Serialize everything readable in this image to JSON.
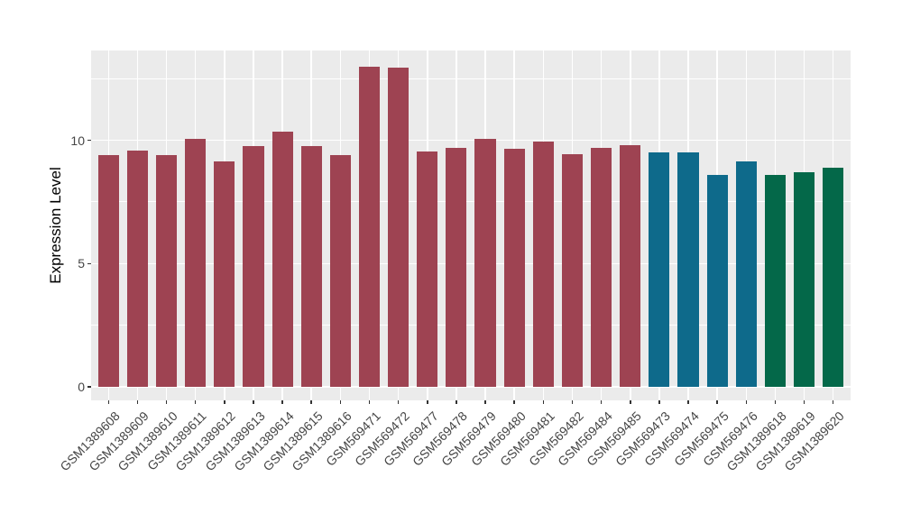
{
  "chart_data": {
    "type": "bar",
    "title": "",
    "xlabel": "",
    "ylabel": "Expression Level",
    "y_ticks": [
      0,
      5,
      10
    ],
    "y_minor_ticks": [
      2.5,
      7.5,
      12.5
    ],
    "ylim": [
      0,
      13.65
    ],
    "grid": true,
    "legend_position": "none",
    "panel_background": "#EBEBEB",
    "grid_color": "#FFFFFF",
    "axis_text_color": "#454545",
    "categories": [
      "GSM1389608",
      "GSM1389609",
      "GSM1389610",
      "GSM1389611",
      "GSM1389612",
      "GSM1389613",
      "GSM1389614",
      "GSM1389615",
      "GSM1389616",
      "GSM569471",
      "GSM569472",
      "GSM569477",
      "GSM569478",
      "GSM569479",
      "GSM569480",
      "GSM569481",
      "GSM569482",
      "GSM569484",
      "GSM569485",
      "GSM569473",
      "GSM569474",
      "GSM569475",
      "GSM569476",
      "GSM1389618",
      "GSM1389619",
      "GSM1389620"
    ],
    "values": [
      9.4,
      9.6,
      9.4,
      10.05,
      9.15,
      9.75,
      10.35,
      9.75,
      9.4,
      13.0,
      12.95,
      9.55,
      9.7,
      10.05,
      9.65,
      9.95,
      9.45,
      9.7,
      9.8,
      9.5,
      9.5,
      8.6,
      9.15,
      8.6,
      8.7,
      8.9
    ],
    "bar_colors": [
      "#9E4352",
      "#9E4352",
      "#9E4352",
      "#9E4352",
      "#9E4352",
      "#9E4352",
      "#9E4352",
      "#9E4352",
      "#9E4352",
      "#9E4352",
      "#9E4352",
      "#9E4352",
      "#9E4352",
      "#9E4352",
      "#9E4352",
      "#9E4352",
      "#9E4352",
      "#9E4352",
      "#9E4352",
      "#0E6A8B",
      "#0E6A8B",
      "#0E6A8B",
      "#0E6A8B",
      "#046849",
      "#046849",
      "#046849"
    ],
    "group_palette": {
      "red": "#9E4352",
      "teal": "#0E6A8B",
      "green": "#046849"
    }
  }
}
